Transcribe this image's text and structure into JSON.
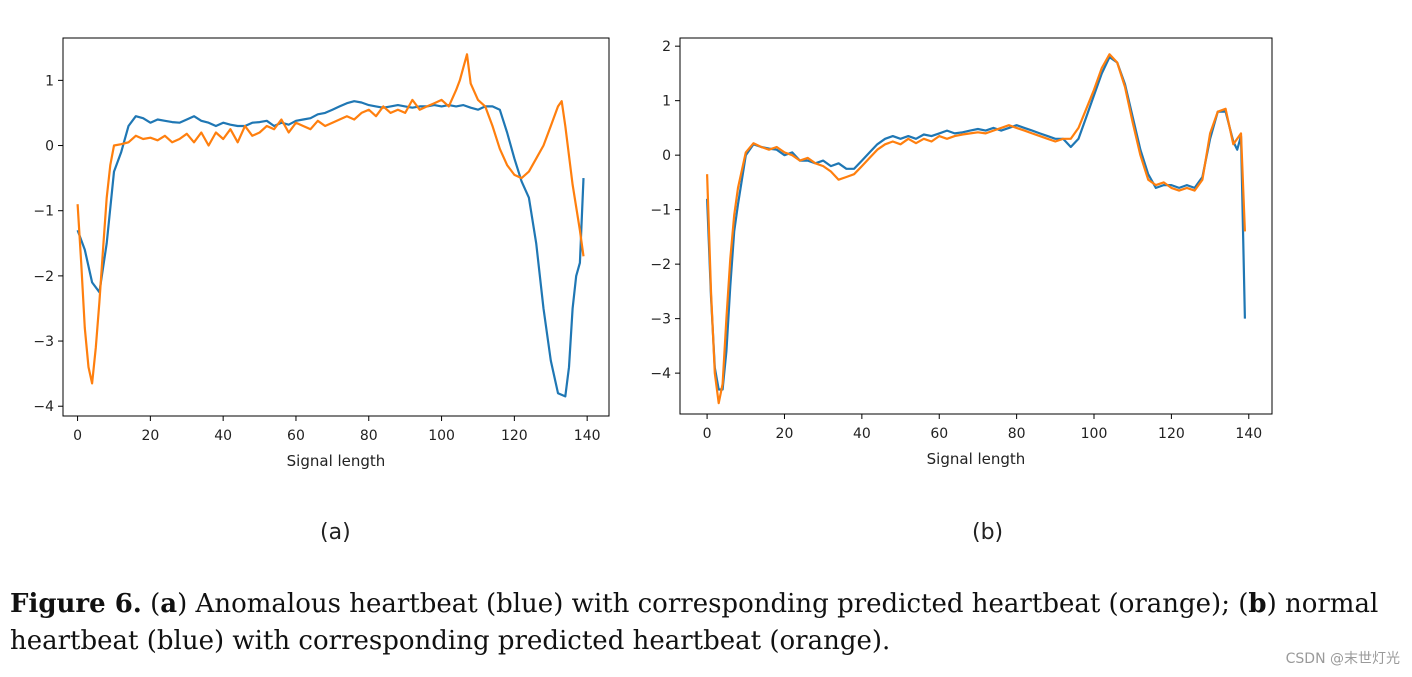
{
  "colors": {
    "series_blue": "#1f77b4",
    "series_orange": "#ff7f0e",
    "axis": "#000000"
  },
  "chart_data": [
    {
      "type": "line",
      "panel_label": "(a)",
      "xlabel": "Signal length",
      "ylabel": "",
      "xlim": [
        -4,
        146
      ],
      "ylim": [
        -4.15,
        1.65
      ],
      "xticks": [
        0,
        20,
        40,
        60,
        80,
        100,
        120,
        140
      ],
      "yticks": [
        1,
        0,
        -1,
        -2,
        -3,
        -4
      ],
      "series": [
        {
          "name": "Anomalous heartbeat",
          "color": "#1f77b4",
          "x": [
            0,
            2,
            4,
            6,
            8,
            10,
            12,
            14,
            16,
            18,
            20,
            22,
            24,
            26,
            28,
            30,
            32,
            34,
            36,
            38,
            40,
            42,
            44,
            46,
            48,
            50,
            52,
            54,
            56,
            58,
            60,
            62,
            64,
            66,
            68,
            70,
            72,
            74,
            76,
            78,
            80,
            82,
            84,
            86,
            88,
            90,
            92,
            94,
            96,
            98,
            100,
            102,
            104,
            106,
            108,
            110,
            112,
            114,
            116,
            118,
            120,
            122,
            124,
            126,
            128,
            130,
            132,
            134,
            135,
            136,
            137,
            138,
            139
          ],
          "y": [
            -1.3,
            -1.6,
            -2.1,
            -2.25,
            -1.5,
            -0.4,
            -0.1,
            0.3,
            0.45,
            0.42,
            0.35,
            0.4,
            0.38,
            0.36,
            0.35,
            0.4,
            0.45,
            0.38,
            0.35,
            0.3,
            0.35,
            0.32,
            0.3,
            0.3,
            0.35,
            0.36,
            0.38,
            0.3,
            0.35,
            0.32,
            0.38,
            0.4,
            0.42,
            0.48,
            0.5,
            0.55,
            0.6,
            0.65,
            0.68,
            0.66,
            0.62,
            0.6,
            0.58,
            0.6,
            0.62,
            0.6,
            0.58,
            0.6,
            0.6,
            0.62,
            0.6,
            0.62,
            0.6,
            0.62,
            0.58,
            0.55,
            0.6,
            0.6,
            0.55,
            0.2,
            -0.2,
            -0.55,
            -0.8,
            -1.5,
            -2.5,
            -3.3,
            -3.8,
            -3.85,
            -3.4,
            -2.5,
            -2.0,
            -1.8,
            -0.5
          ]
        },
        {
          "name": "Predicted heartbeat",
          "color": "#ff7f0e",
          "x": [
            0,
            1,
            2,
            3,
            4,
            5,
            6,
            7,
            8,
            9,
            10,
            12,
            14,
            16,
            18,
            20,
            22,
            24,
            26,
            28,
            30,
            32,
            34,
            36,
            38,
            40,
            42,
            44,
            46,
            48,
            50,
            52,
            54,
            56,
            58,
            60,
            62,
            64,
            66,
            68,
            70,
            72,
            74,
            76,
            78,
            80,
            82,
            84,
            86,
            88,
            90,
            92,
            94,
            96,
            98,
            100,
            102,
            104,
            105,
            106,
            107,
            108,
            110,
            112,
            114,
            116,
            118,
            120,
            122,
            124,
            126,
            128,
            130,
            132,
            133,
            134,
            136,
            138,
            139
          ],
          "y": [
            -0.9,
            -1.8,
            -2.8,
            -3.4,
            -3.65,
            -3.1,
            -2.4,
            -1.6,
            -0.8,
            -0.3,
            0.0,
            0.02,
            0.05,
            0.15,
            0.1,
            0.12,
            0.08,
            0.15,
            0.05,
            0.1,
            0.18,
            0.05,
            0.2,
            0.0,
            0.2,
            0.1,
            0.25,
            0.05,
            0.3,
            0.15,
            0.2,
            0.3,
            0.25,
            0.4,
            0.2,
            0.35,
            0.3,
            0.25,
            0.38,
            0.3,
            0.35,
            0.4,
            0.45,
            0.4,
            0.5,
            0.55,
            0.45,
            0.6,
            0.5,
            0.55,
            0.5,
            0.7,
            0.55,
            0.6,
            0.65,
            0.7,
            0.6,
            0.85,
            1.0,
            1.2,
            1.4,
            0.95,
            0.7,
            0.6,
            0.3,
            -0.05,
            -0.3,
            -0.45,
            -0.5,
            -0.4,
            -0.2,
            0.0,
            0.3,
            0.6,
            0.68,
            0.3,
            -0.6,
            -1.3,
            -1.7
          ]
        }
      ]
    },
    {
      "type": "line",
      "panel_label": "(b)",
      "xlabel": "Signal length",
      "ylabel": "",
      "xlim": [
        -7,
        146
      ],
      "ylim": [
        -4.75,
        2.15
      ],
      "xticks": [
        0,
        20,
        40,
        60,
        80,
        100,
        120,
        140
      ],
      "yticks": [
        2,
        1,
        0,
        -1,
        -2,
        -3,
        -4
      ],
      "series": [
        {
          "name": "Normal heartbeat",
          "color": "#1f77b4",
          "x": [
            0,
            1,
            2,
            3,
            4,
            5,
            6,
            7,
            8,
            10,
            12,
            14,
            16,
            18,
            20,
            22,
            24,
            26,
            28,
            30,
            32,
            34,
            36,
            38,
            40,
            42,
            44,
            46,
            48,
            50,
            52,
            54,
            56,
            58,
            60,
            62,
            64,
            66,
            68,
            70,
            72,
            74,
            76,
            78,
            80,
            82,
            84,
            86,
            88,
            90,
            92,
            94,
            96,
            98,
            100,
            102,
            104,
            106,
            108,
            110,
            112,
            114,
            116,
            118,
            120,
            122,
            124,
            126,
            128,
            130,
            132,
            134,
            136,
            137,
            138,
            139
          ],
          "y": [
            -0.8,
            -2.6,
            -3.9,
            -4.3,
            -4.3,
            -3.6,
            -2.4,
            -1.4,
            -0.9,
            0.0,
            0.2,
            0.15,
            0.12,
            0.1,
            0.0,
            0.05,
            -0.1,
            -0.1,
            -0.15,
            -0.1,
            -0.2,
            -0.15,
            -0.25,
            -0.25,
            -0.1,
            0.05,
            0.2,
            0.3,
            0.35,
            0.3,
            0.35,
            0.3,
            0.38,
            0.35,
            0.4,
            0.45,
            0.4,
            0.42,
            0.45,
            0.48,
            0.45,
            0.5,
            0.45,
            0.5,
            0.55,
            0.5,
            0.45,
            0.4,
            0.35,
            0.3,
            0.3,
            0.15,
            0.3,
            0.7,
            1.1,
            1.5,
            1.8,
            1.7,
            1.3,
            0.7,
            0.1,
            -0.35,
            -0.6,
            -0.55,
            -0.55,
            -0.6,
            -0.55,
            -0.6,
            -0.4,
            0.3,
            0.8,
            0.8,
            0.25,
            0.1,
            0.35,
            -3.0
          ]
        },
        {
          "name": "Predicted heartbeat",
          "color": "#ff7f0e",
          "x": [
            0,
            1,
            2,
            3,
            4,
            5,
            6,
            7,
            8,
            10,
            12,
            14,
            16,
            18,
            20,
            22,
            24,
            26,
            28,
            30,
            32,
            34,
            36,
            38,
            40,
            42,
            44,
            46,
            48,
            50,
            52,
            54,
            56,
            58,
            60,
            62,
            64,
            66,
            68,
            70,
            72,
            74,
            76,
            78,
            80,
            82,
            84,
            86,
            88,
            90,
            92,
            94,
            96,
            98,
            100,
            102,
            104,
            106,
            108,
            110,
            112,
            114,
            116,
            118,
            120,
            122,
            124,
            126,
            128,
            130,
            132,
            134,
            136,
            137,
            138,
            139
          ],
          "y": [
            -0.35,
            -2.5,
            -4.0,
            -4.55,
            -4.2,
            -3.0,
            -1.9,
            -1.1,
            -0.6,
            0.05,
            0.22,
            0.15,
            0.1,
            0.15,
            0.05,
            0.0,
            -0.1,
            -0.05,
            -0.15,
            -0.2,
            -0.3,
            -0.45,
            -0.4,
            -0.35,
            -0.2,
            -0.05,
            0.1,
            0.2,
            0.25,
            0.2,
            0.3,
            0.22,
            0.3,
            0.25,
            0.35,
            0.3,
            0.35,
            0.38,
            0.4,
            0.42,
            0.4,
            0.45,
            0.5,
            0.55,
            0.5,
            0.45,
            0.4,
            0.35,
            0.3,
            0.25,
            0.3,
            0.3,
            0.5,
            0.85,
            1.2,
            1.6,
            1.85,
            1.7,
            1.25,
            0.6,
            0.0,
            -0.45,
            -0.55,
            -0.5,
            -0.6,
            -0.65,
            -0.6,
            -0.65,
            -0.45,
            0.4,
            0.8,
            0.85,
            0.2,
            0.3,
            0.4,
            -1.4
          ]
        }
      ]
    }
  ],
  "caption": {
    "label": "Figure 6.",
    "part_a_open": "(",
    "part_a_letter": "a",
    "part_a_text": ") Anomalous heartbeat (blue) with corresponding predicted heartbeat (orange); (",
    "part_b_letter": "b",
    "part_b_text": ") normal heartbeat (blue) with corresponding predicted heartbeat (orange)."
  },
  "watermark": "CSDN @末世灯光"
}
